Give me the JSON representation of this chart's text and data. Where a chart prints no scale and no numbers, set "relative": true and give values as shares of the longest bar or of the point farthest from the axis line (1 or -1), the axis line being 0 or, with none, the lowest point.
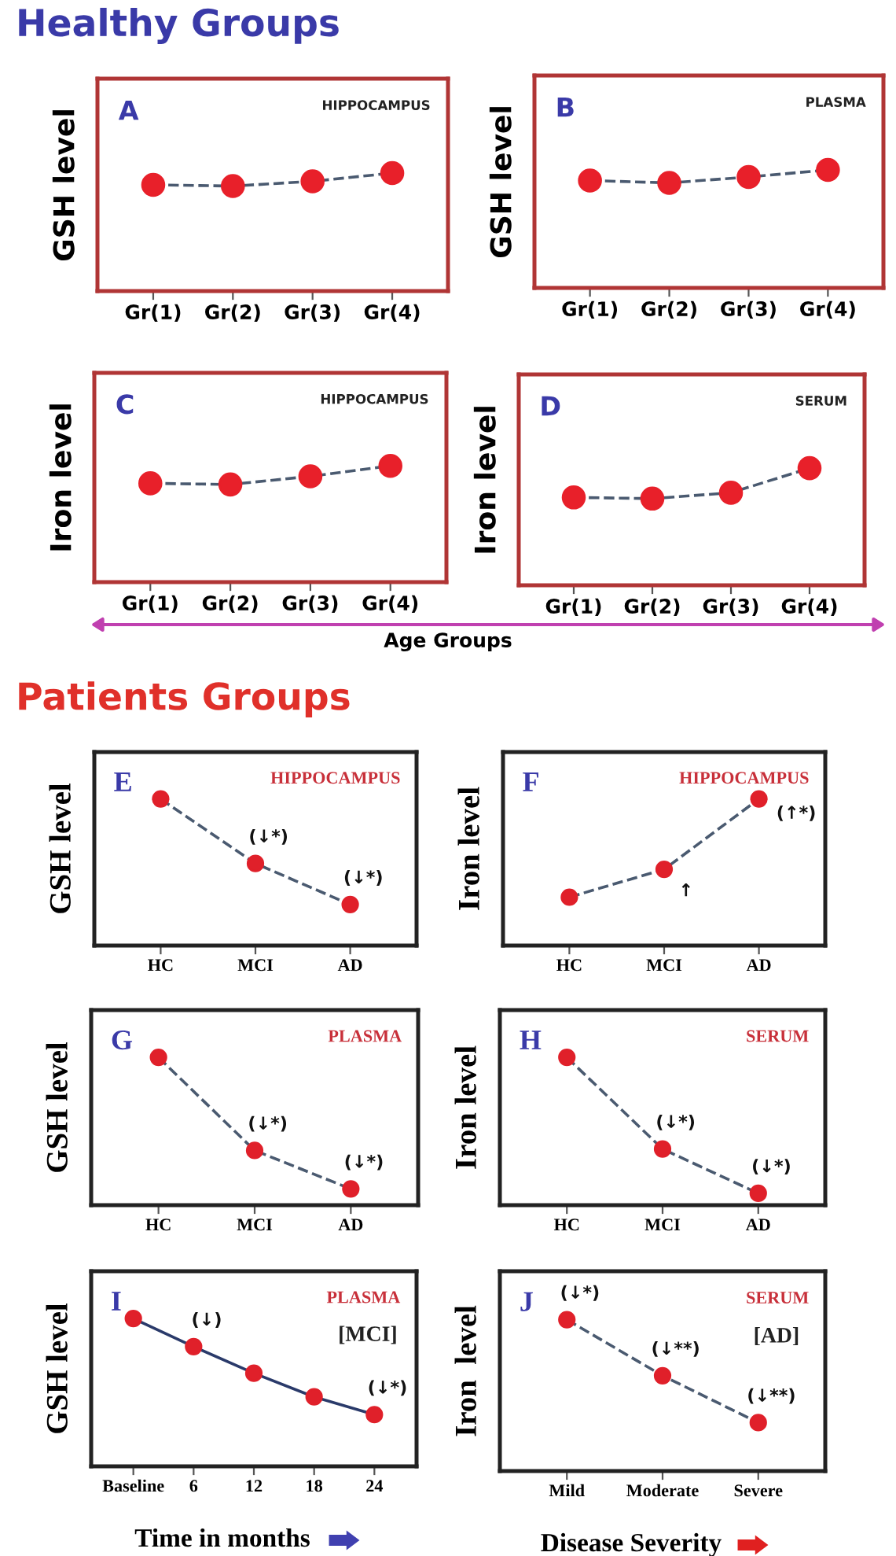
{
  "chart_data": [
    {
      "type": "line",
      "title": "Healthy Groups",
      "subtitle": "HIPPOCAMPUS",
      "ylabel": "GSH level",
      "categories": [
        "Gr(1)",
        "Gr(2)",
        "Gr(3)",
        "Gr(4)"
      ],
      "relative": true,
      "marker": "circle",
      "line_style": "dashed",
      "series": [
        {
          "color": "#e8202a",
          "values": [
            0.9,
            0.89,
            0.93,
            1
          ]
        }
      ],
      "annotations": [
        "A"
      ]
    },
    {
      "type": "line",
      "subtitle": "PLASMA",
      "ylabel": "GSH level",
      "categories": [
        "Gr(1)",
        "Gr(2)",
        "Gr(3)",
        "Gr(4)"
      ],
      "relative": true,
      "marker": "circle",
      "line_style": "dashed",
      "series": [
        {
          "color": "#e8202a",
          "values": [
            0.91,
            0.89,
            0.94,
            1
          ]
        }
      ],
      "annotations": [
        "B"
      ]
    },
    {
      "type": "line",
      "subtitle": "HIPPOCAMPUS",
      "ylabel": "Iron level",
      "xlabel": "Age Groups",
      "categories": [
        "Gr(1)",
        "Gr(2)",
        "Gr(3)",
        "Gr(4)"
      ],
      "relative": true,
      "marker": "circle",
      "line_style": "dashed",
      "series": [
        {
          "color": "#e8202a",
          "values": [
            0.85,
            0.84,
            0.91,
            1
          ]
        }
      ],
      "annotations": [
        "C"
      ]
    },
    {
      "type": "line",
      "subtitle": "SERUM",
      "ylabel": "Iron level",
      "categories": [
        "Gr(1)",
        "Gr(2)",
        "Gr(3)",
        "Gr(4)"
      ],
      "relative": true,
      "marker": "circle",
      "line_style": "dashed",
      "series": [
        {
          "color": "#e8202a",
          "values": [
            0.75,
            0.74,
            0.79,
            1
          ]
        }
      ],
      "annotations": [
        "D"
      ]
    },
    {
      "type": "line",
      "title": "Patients Groups",
      "subtitle": "HIPPOCAMPUS",
      "ylabel": "GSH level",
      "categories": [
        "HC",
        "MCI",
        "AD"
      ],
      "relative": true,
      "marker": "circle",
      "line_style": "dashed",
      "series": [
        {
          "color": "#e0202a",
          "values": [
            1,
            0.56,
            0.28
          ]
        }
      ],
      "annotations": [
        "E",
        {
          "text": "(↓*)",
          "x": "MCI",
          "y": 0.56
        },
        {
          "text": "(↓*)",
          "x": "AD",
          "y": 0.28
        }
      ]
    },
    {
      "type": "line",
      "subtitle": "HIPPOCAMPUS",
      "ylabel": "Iron level",
      "categories": [
        "HC",
        "MCI",
        "AD"
      ],
      "relative": true,
      "marker": "circle",
      "line_style": "dashed",
      "series": [
        {
          "color": "#e0202a",
          "values": [
            0.33,
            0.52,
            1
          ]
        }
      ],
      "annotations": [
        "F",
        {
          "text": "↑",
          "x": "MCI",
          "y": 0.52
        },
        {
          "text": "(↑*)",
          "x": "AD",
          "y": 1
        }
      ]
    },
    {
      "type": "line",
      "subtitle": "PLASMA",
      "ylabel": "GSH level",
      "categories": [
        "HC",
        "MCI",
        "AD"
      ],
      "relative": true,
      "marker": "circle",
      "line_style": "dashed",
      "series": [
        {
          "color": "#e0202a",
          "values": [
            1,
            0.37,
            0.11
          ]
        }
      ],
      "annotations": [
        "G",
        {
          "text": "(↓*)",
          "x": "MCI",
          "y": 0.37
        },
        {
          "text": "(↓*)",
          "x": "AD",
          "y": 0.11
        }
      ]
    },
    {
      "type": "line",
      "subtitle": "SERUM",
      "ylabel": "Iron level",
      "categories": [
        "HC",
        "MCI",
        "AD"
      ],
      "relative": true,
      "marker": "circle",
      "line_style": "dashed",
      "series": [
        {
          "color": "#e0202a",
          "values": [
            1,
            0.38,
            0.08
          ]
        }
      ],
      "annotations": [
        "H",
        {
          "text": "(↓*)",
          "x": "MCI",
          "y": 0.38
        },
        {
          "text": "(↓*)",
          "x": "AD",
          "y": 0.08
        }
      ]
    },
    {
      "type": "line",
      "subtitle": "PLASMA",
      "ylabel": "GSH level",
      "xlabel": "Time in months",
      "categories": [
        "Baseline",
        "6",
        "12",
        "18",
        "24"
      ],
      "relative": true,
      "marker": "circle",
      "line_style": "solid",
      "series": [
        {
          "color": "#e0202a",
          "values": [
            1,
            0.81,
            0.63,
            0.47,
            0.35
          ]
        }
      ],
      "annotations": [
        "I",
        "[MCI]",
        {
          "text": "(↓)",
          "x": "6",
          "y": 0.81
        },
        {
          "text": "(↓*)",
          "x": "24",
          "y": 0.35
        }
      ]
    },
    {
      "type": "line",
      "subtitle": "SERUM",
      "ylabel": "Iron  level",
      "xlabel": "Disease Severity",
      "categories": [
        "Mild",
        "Moderate",
        "Severe"
      ],
      "relative": true,
      "marker": "circle",
      "line_style": "dashed",
      "series": [
        {
          "color": "#e0202a",
          "values": [
            1,
            0.63,
            0.32
          ]
        }
      ],
      "annotations": [
        "J",
        "[AD]",
        {
          "text": "(↓*)",
          "x": "Mild",
          "y": 1
        },
        {
          "text": "(↓**)",
          "x": "Moderate",
          "y": 0.63
        },
        {
          "text": "(↓**)",
          "x": "Severe",
          "y": 0.32
        }
      ]
    }
  ]
}
